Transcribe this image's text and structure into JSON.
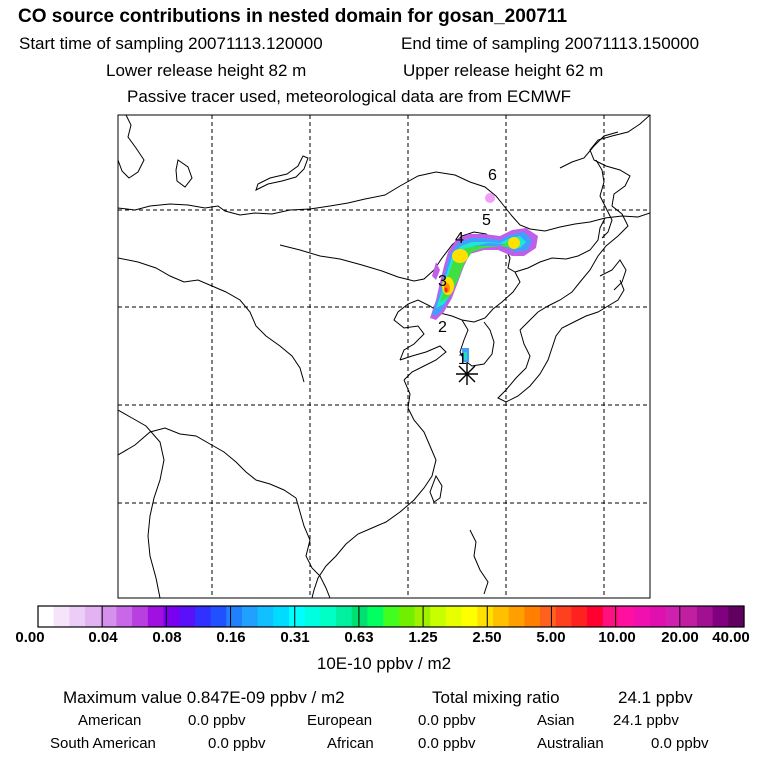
{
  "header": {
    "title": "CO  source contributions in nested domain for gosan_200711",
    "start_label": "Start time of sampling 20071113.120000",
    "end_label": "End time of sampling 20071113.150000",
    "lower_label": "Lower release height   82 m",
    "upper_label": "Upper release height   62 m",
    "tracer_label": "Passive tracer used, meteorological data are from ECMWF"
  },
  "map": {
    "time_markers": [
      "1",
      "2",
      "3",
      "4",
      "5",
      "6"
    ],
    "receptor": "gosan station",
    "plume_colors": {
      "low": "#e080f0",
      "mid": "#40a0ff",
      "cyan": "#20e8d0",
      "green": "#40e040",
      "yellow": "#ffe000",
      "orange": "#ff9000",
      "red": "#ff2020",
      "purple": "#9000c0"
    }
  },
  "colorbar": {
    "ticks": [
      "0.00",
      "0.04",
      "0.08",
      "0.16",
      "0.31",
      "0.63",
      "1.25",
      "2.50",
      "5.00",
      "10.00",
      "20.00",
      "40.00"
    ],
    "unit": "10E-10 ppbv / m2",
    "colors": [
      "#ffffff",
      "#f6e4fb",
      "#eccdf7",
      "#e2b2f2",
      "#d590ec",
      "#c868e8",
      "#b840e0",
      "#a010e0",
      "#7a00f0",
      "#5a10f8",
      "#3030ff",
      "#2050ff",
      "#2080ff",
      "#20a0ff",
      "#10c0ff",
      "#00dcff",
      "#00ffff",
      "#00ffe0",
      "#00ffc4",
      "#00f0a0",
      "#00e070",
      "#00ff60",
      "#40ff20",
      "#70f000",
      "#a0f000",
      "#c8ff00",
      "#e8ff00",
      "#ffff00",
      "#ffe000",
      "#ffc000",
      "#ffa000",
      "#ff8000",
      "#ff6020",
      "#ff4020",
      "#ff2020",
      "#ff0030",
      "#ff1080",
      "#ff10a0",
      "#f010b0",
      "#e010b0",
      "#d020b0",
      "#c020a0",
      "#a01090",
      "#800080",
      "#600060"
    ]
  },
  "summary": {
    "max_label": "Maximum value  0.847E-09 ppbv / m2",
    "total_label": "Total mixing ratio",
    "total_value": "24.1 ppbv",
    "regions": [
      {
        "name": "American",
        "value": "0.0 ppbv"
      },
      {
        "name": "European",
        "value": "0.0 ppbv"
      },
      {
        "name": "Asian",
        "value": "24.1 ppbv"
      },
      {
        "name": "South American",
        "value": "0.0 ppbv"
      },
      {
        "name": "African",
        "value": "0.0 ppbv"
      },
      {
        "name": "Australian",
        "value": "0.0 ppbv"
      }
    ]
  }
}
